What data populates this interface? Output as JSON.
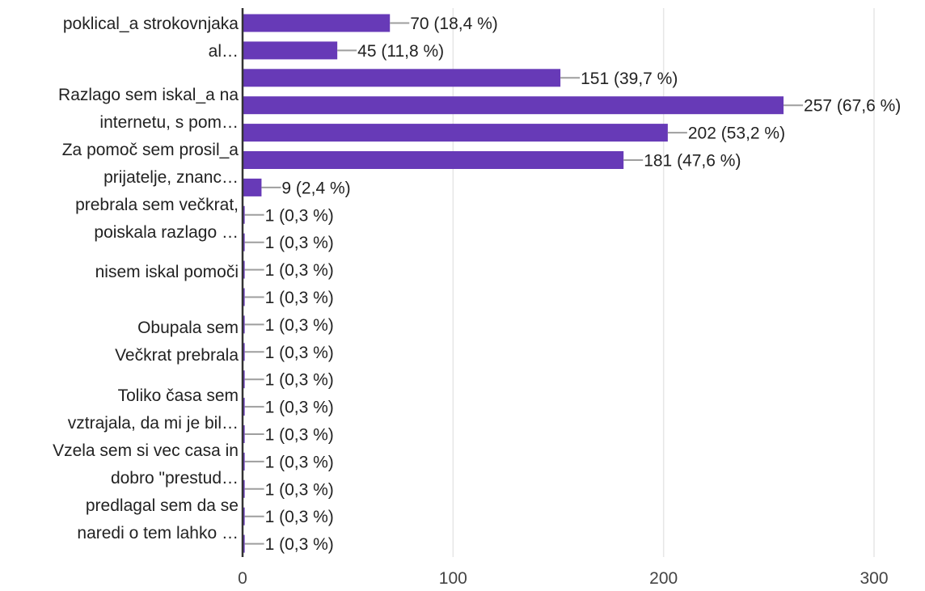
{
  "chart_data": {
    "type": "bar",
    "orientation": "horizontal",
    "title": "",
    "xlabel": "",
    "ylabel": "",
    "xlim": [
      0,
      300
    ],
    "x_ticks": [
      "0",
      "100",
      "200",
      "300"
    ],
    "grid": true,
    "legend": "none",
    "bar_color": "#673ab7",
    "axis_color": "#333333",
    "grid_color": "#e6e6e6",
    "leader_color": "#9e9e9e",
    "category_labels": [
      {
        "lines": [
          "poklical_a strokovnjaka",
          "al…"
        ]
      },
      {
        "lines": [
          "Razlago sem iskal_a na",
          "internetu, s pom…"
        ]
      },
      {
        "lines": [
          "Za pomoč sem prosil_a",
          "prijatelje, znanc…"
        ]
      },
      {
        "lines": [
          "prebrala sem večkrat,",
          "poiskala razlago …"
        ]
      },
      {
        "lines": [
          "nisem iskal pomoči"
        ]
      },
      {
        "lines": [
          "Obupala sem"
        ]
      },
      {
        "lines": [
          "Večkrat prebrala"
        ]
      },
      {
        "lines": [
          "Toliko časa sem",
          "vztrajala, da mi je bil…"
        ]
      },
      {
        "lines": [
          "Vzela sem si vec casa in",
          "dobro \"prestud…"
        ]
      },
      {
        "lines": [
          "predlagal sem da se",
          "naredi o tem lahko …"
        ]
      }
    ],
    "bars": [
      {
        "value": 70,
        "label": "70 (18,4 %)"
      },
      {
        "value": 45,
        "label": "45 (11,8 %)"
      },
      {
        "value": 151,
        "label": "151 (39,7 %)"
      },
      {
        "value": 257,
        "label": "257 (67,6 %)"
      },
      {
        "value": 202,
        "label": "202 (53,2 %)"
      },
      {
        "value": 181,
        "label": "181 (47,6 %)"
      },
      {
        "value": 9,
        "label": "9 (2,4 %)"
      },
      {
        "value": 1,
        "label": "1 (0,3 %)"
      },
      {
        "value": 1,
        "label": "1 (0,3 %)"
      },
      {
        "value": 1,
        "label": "1 (0,3 %)"
      },
      {
        "value": 1,
        "label": "1 (0,3 %)"
      },
      {
        "value": 1,
        "label": "1 (0,3 %)"
      },
      {
        "value": 1,
        "label": "1 (0,3 %)"
      },
      {
        "value": 1,
        "label": "1 (0,3 %)"
      },
      {
        "value": 1,
        "label": "1 (0,3 %)"
      },
      {
        "value": 1,
        "label": "1 (0,3 %)"
      },
      {
        "value": 1,
        "label": "1 (0,3 %)"
      },
      {
        "value": 1,
        "label": "1 (0,3 %)"
      },
      {
        "value": 1,
        "label": "1 (0,3 %)"
      },
      {
        "value": 1,
        "label": "1 (0,3 %)"
      }
    ]
  }
}
